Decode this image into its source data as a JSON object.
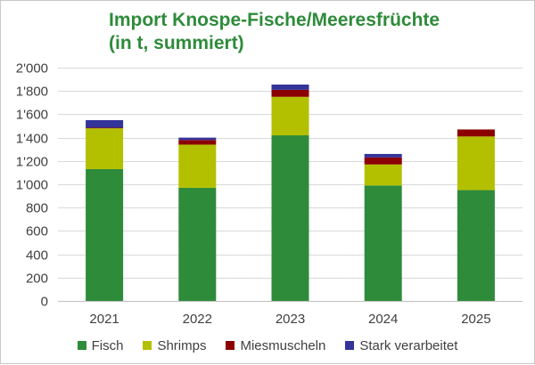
{
  "chart_data": {
    "type": "bar",
    "stacked": true,
    "title": "Import Knospe-Fische/Meeresfrüchte",
    "subtitle": "(in t, summiert)",
    "xlabel": "",
    "ylabel": "",
    "categories": [
      "2021",
      "2022",
      "2023",
      "2024",
      "2025"
    ],
    "ylim": [
      0,
      2000
    ],
    "yticks": [
      0,
      200,
      400,
      600,
      800,
      1000,
      1200,
      1400,
      1600,
      1800,
      2000
    ],
    "ytick_labels": [
      "0",
      "200",
      "400",
      "600",
      "800",
      "1'000",
      "1'200",
      "1'400",
      "1'600",
      "1'800",
      "2'000"
    ],
    "grid": true,
    "legend_position": "bottom",
    "series": [
      {
        "name": "Fisch",
        "color": "#2e8b3a",
        "values": [
          1130,
          970,
          1420,
          990,
          950
        ]
      },
      {
        "name": "Shrimps",
        "color": "#b3c000",
        "values": [
          350,
          370,
          330,
          180,
          460
        ]
      },
      {
        "name": "Miesmuscheln",
        "color": "#8b0000",
        "values": [
          5,
          40,
          60,
          60,
          60
        ]
      },
      {
        "name": "Stark verarbeitet",
        "color": "#333399",
        "values": [
          65,
          20,
          45,
          30,
          0
        ]
      }
    ]
  }
}
